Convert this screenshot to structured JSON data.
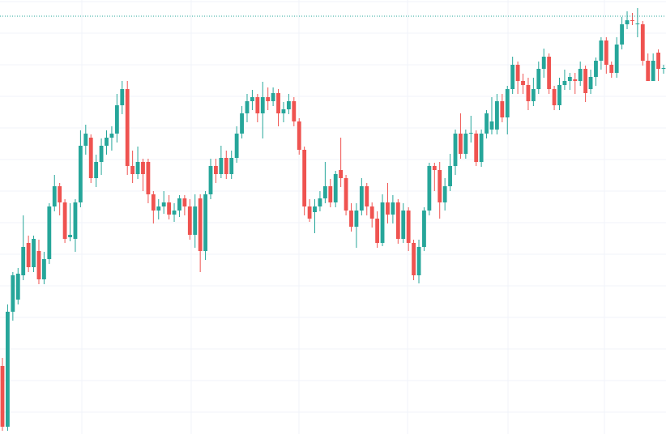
{
  "chart_data": {
    "type": "candlestick",
    "up_color": "#26a69a",
    "down_color": "#ef5350",
    "ylim": [
      0,
      536
    ],
    "grid": true,
    "price_line": 516,
    "price_line_color": "#26a69a",
    "open": [
      84,
      9,
      151,
      166,
      196,
      236,
      206,
      226,
      191,
      216,
      281,
      306,
      286,
      243,
      241,
      286,
      356,
      366,
      316,
      336,
      356,
      366,
      371,
      406,
      426,
      331,
      321,
      336,
      336,
      296,
      276,
      281,
      286,
      271,
      276,
      291,
      281,
      246,
      291,
      226,
      296,
      331,
      321,
      341,
      321,
      341,
      371,
      396,
      411,
      416,
      396,
      416,
      411,
      421,
      396,
      401,
      411,
      386,
      351,
      281,
      274,
      281,
      291,
      306,
      286,
      326,
      316,
      276,
      256,
      276,
      306,
      281,
      266,
      236,
      286,
      271,
      286,
      241,
      276,
      236,
      196,
      231,
      276,
      331,
      326,
      286,
      306,
      331,
      371,
      346,
      371,
      371,
      336,
      371,
      376,
      376,
      411,
      391,
      426,
      456,
      436,
      431,
      411,
      426,
      451,
      466,
      426,
      406,
      431,
      436,
      438,
      436,
      451,
      426,
      441,
      461,
      486,
      456,
      446,
      481,
      506,
      511,
      506,
      506,
      461,
      436,
      471,
      451
    ],
    "high": [
      94,
      160,
      200,
      205,
      270,
      245,
      245,
      240,
      225,
      285,
      320,
      310,
      290,
      285,
      290,
      375,
      382,
      370,
      345,
      365,
      375,
      380,
      420,
      436,
      436,
      350,
      355,
      340,
      340,
      300,
      290,
      300,
      295,
      285,
      295,
      295,
      290,
      296,
      296,
      300,
      340,
      340,
      356,
      350,
      350,
      380,
      405,
      420,
      425,
      420,
      435,
      428,
      428,
      426,
      410,
      420,
      416,
      390,
      355,
      290,
      290,
      300,
      336,
      315,
      325,
      366,
      320,
      285,
      285,
      316,
      310,
      286,
      275,
      296,
      310,
      295,
      290,
      285,
      280,
      240,
      240,
      280,
      335,
      335,
      336,
      316,
      346,
      376,
      396,
      376,
      393,
      375,
      376,
      400,
      416,
      420,
      420,
      430,
      466,
      460,
      445,
      440,
      440,
      460,
      476,
      470,
      430,
      440,
      450,
      446,
      446,
      460,
      455,
      450,
      465,
      490,
      490,
      460,
      490,
      515,
      522,
      520,
      526,
      510,
      470,
      470,
      475,
      456
    ],
    "low": [
      4,
      4,
      140,
      160,
      190,
      200,
      200,
      185,
      185,
      210,
      275,
      270,
      236,
      238,
      225,
      280,
      345,
      310,
      305,
      320,
      345,
      350,
      360,
      395,
      320,
      310,
      315,
      300,
      285,
      260,
      265,
      272,
      265,
      262,
      268,
      270,
      240,
      230,
      200,
      215,
      290,
      310,
      316,
      315,
      315,
      335,
      365,
      385,
      400,
      385,
      365,
      400,
      405,
      380,
      385,
      395,
      380,
      345,
      270,
      262,
      248,
      275,
      285,
      280,
      280,
      305,
      270,
      250,
      230,
      270,
      270,
      255,
      230,
      232,
      260,
      260,
      235,
      236,
      226,
      190,
      186,
      226,
      270,
      300,
      266,
      276,
      300,
      320,
      340,
      340,
      360,
      331,
      330,
      365,
      370,
      370,
      385,
      370,
      420,
      420,
      420,
      400,
      405,
      420,
      440,
      420,
      400,
      400,
      425,
      425,
      420,
      430,
      410,
      420,
      430,
      450,
      445,
      440,
      440,
      475,
      500,
      505,
      490,
      455,
      436,
      436,
      436,
      445
    ],
    "close": [
      9,
      151,
      196,
      198,
      231,
      206,
      241,
      191,
      216,
      281,
      306,
      286,
      241,
      246,
      286,
      356,
      371,
      316,
      336,
      356,
      366,
      371,
      406,
      426,
      331,
      321,
      336,
      321,
      296,
      276,
      281,
      286,
      271,
      276,
      291,
      281,
      246,
      281,
      226,
      296,
      331,
      321,
      341,
      321,
      341,
      371,
      396,
      411,
      416,
      396,
      416,
      411,
      421,
      396,
      401,
      411,
      386,
      351,
      281,
      266,
      281,
      291,
      306,
      286,
      321,
      316,
      276,
      256,
      276,
      306,
      281,
      266,
      236,
      286,
      271,
      286,
      241,
      276,
      236,
      196,
      231,
      276,
      331,
      326,
      286,
      306,
      331,
      371,
      346,
      371,
      372,
      336,
      371,
      396,
      386,
      411,
      391,
      426,
      456,
      436,
      431,
      411,
      426,
      451,
      466,
      426,
      406,
      431,
      436,
      441,
      436,
      451,
      421,
      441,
      461,
      486,
      456,
      446,
      481,
      506,
      511,
      510,
      507,
      461,
      436,
      461,
      451,
      452
    ]
  }
}
